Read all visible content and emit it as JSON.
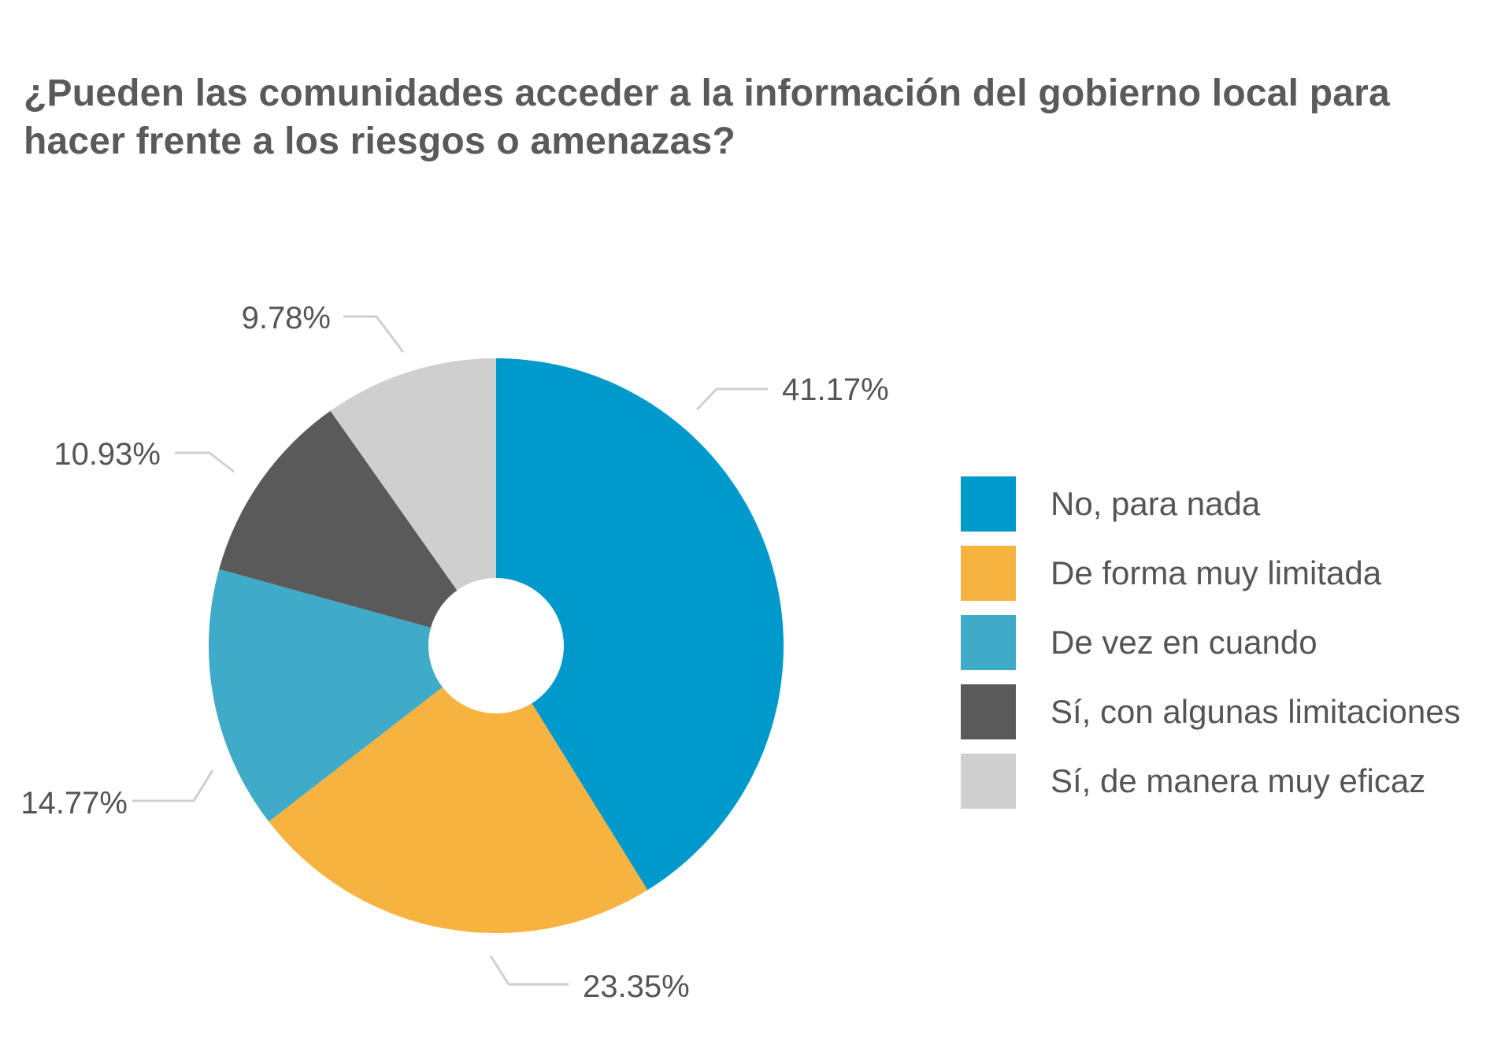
{
  "chart_data": {
    "type": "pie",
    "title": "¿Pueden las comunidades acceder a la información del gobierno local para hacer frente a los riesgos o amenazas?",
    "legend_position": "right",
    "slices": [
      {
        "name": "No, para nada",
        "value": 41.17,
        "label": "41.17%",
        "color": "#0099cc"
      },
      {
        "name": "De forma muy limitada",
        "value": 23.35,
        "label": "23.35%",
        "color": "#f6b33f"
      },
      {
        "name": "De vez en cuando",
        "value": 14.77,
        "label": "14.77%",
        "color": "#40abc8"
      },
      {
        "name": "Sí, con algunas limitaciones",
        "value": 10.93,
        "label": "10.93%",
        "color": "#5a5a5a"
      },
      {
        "name": "Sí, de manera muy eficaz",
        "value": 9.78,
        "label": "9.78%",
        "color": "#cfcfcf"
      }
    ]
  }
}
